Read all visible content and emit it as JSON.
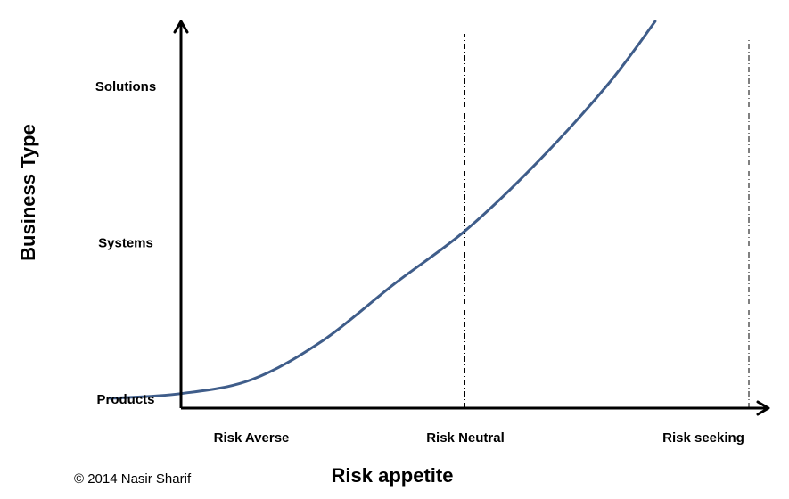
{
  "chart_data": {
    "type": "line",
    "title": "",
    "xlabel": "Risk appetite",
    "ylabel": "Business Type",
    "x_categories": [
      "Risk Averse",
      "Risk Neutral",
      "Risk seeking"
    ],
    "y_categories": [
      "Products",
      "Systems",
      "Solutions"
    ],
    "x_range": [
      0,
      2.2
    ],
    "y_range": [
      -0.06,
      2.4
    ],
    "reference_lines_x": [
      1,
      2
    ],
    "grid": false,
    "legend": "none",
    "series": [
      {
        "color": "#3f5d8a",
        "points": [
          {
            "x": -0.25,
            "y": 0.0
          },
          {
            "x": 0.0,
            "y": 0.03
          },
          {
            "x": 0.25,
            "y": 0.12
          },
          {
            "x": 0.5,
            "y": 0.37
          },
          {
            "x": 0.75,
            "y": 0.73
          },
          {
            "x": 1.0,
            "y": 1.07
          },
          {
            "x": 1.25,
            "y": 1.5
          },
          {
            "x": 1.5,
            "y": 2.0
          },
          {
            "x": 1.67,
            "y": 2.41
          }
        ]
      }
    ]
  },
  "footer": {
    "copyright": "© 2014 Nasir Sharif"
  },
  "colors": {
    "axis": "#000000",
    "curve": "#3f5d8a",
    "reference_line": "#000000"
  }
}
